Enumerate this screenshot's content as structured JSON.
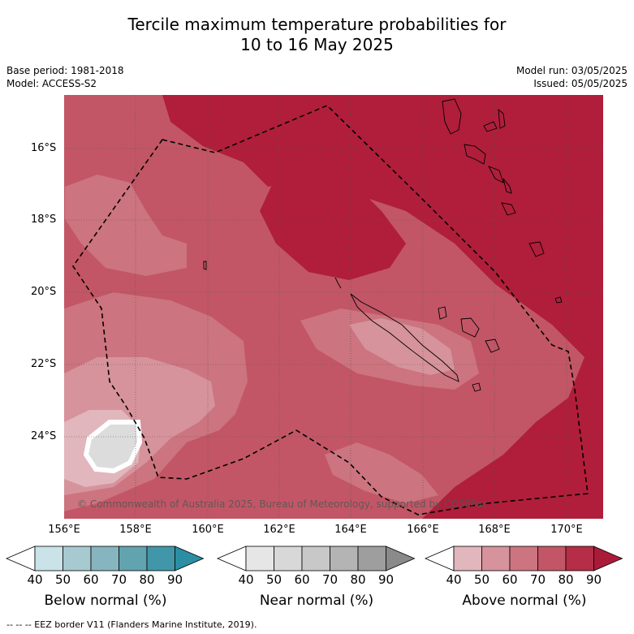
{
  "title_line1": "Tercile maximum temperature probabilities for",
  "title_line2": "10 to 16 May 2025",
  "meta_left": [
    "Base period: 1981-2018",
    "Model: ACCESS-S2"
  ],
  "meta_right": [
    "Model run: 03/05/2025",
    "Issued: 05/05/2025"
  ],
  "lat_labels": [
    "16°S",
    "18°S",
    "20°S",
    "22°S",
    "24°S"
  ],
  "lon_labels": [
    "156°E",
    "158°E",
    "160°E",
    "162°E",
    "164°E",
    "166°E",
    "168°E",
    "170°E"
  ],
  "credit": "© Commonwealth of Australia 2025, Bureau of Meteorology, supported by COSPPac",
  "colorbars": [
    {
      "title": "Below normal (%)",
      "ticks": [
        "40",
        "50",
        "60",
        "70",
        "80",
        "90"
      ],
      "colors": [
        "#ffffff",
        "#c9e3e8",
        "#a6cacf",
        "#86b5bf",
        "#62a3b0",
        "#4197a9",
        "#2b8ea3"
      ]
    },
    {
      "title": "Near normal (%)",
      "ticks": [
        "40",
        "50",
        "60",
        "70",
        "80",
        "90"
      ],
      "colors": [
        "#ffffff",
        "#e6e6e6",
        "#d8d8d8",
        "#c8c8c8",
        "#b4b4b4",
        "#9e9e9e",
        "#8a8a8a"
      ]
    },
    {
      "title": "Above normal (%)",
      "ticks": [
        "40",
        "50",
        "60",
        "70",
        "80",
        "90"
      ],
      "colors": [
        "#ffffff",
        "#e1b6bc",
        "#d6939b",
        "#cc747f",
        "#c25666",
        "#b52d46",
        "#aa1b3a"
      ]
    }
  ],
  "footnote": "--  --  -- EEZ border V11 (Flanders Marine Institute, 2019)."
}
